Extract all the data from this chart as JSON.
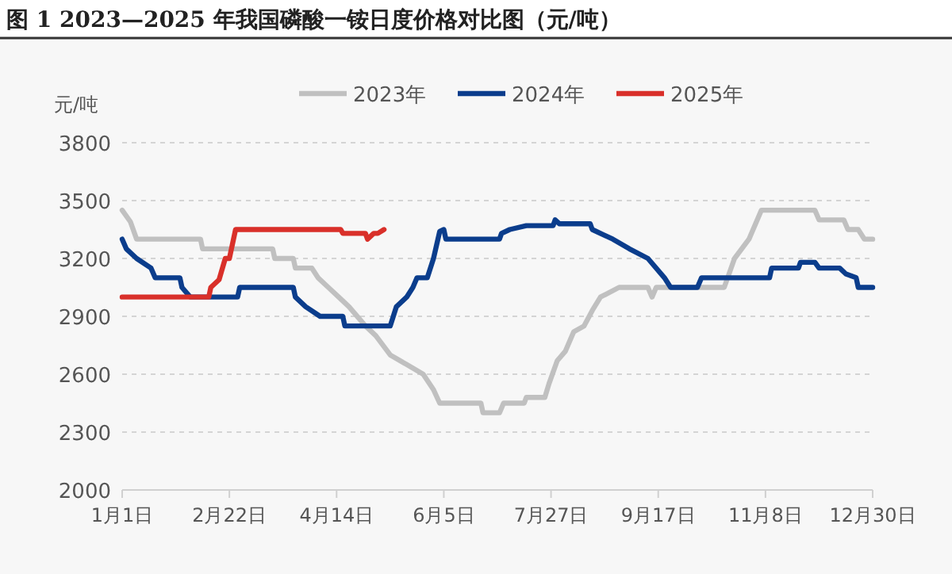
{
  "chart_data": {
    "type": "line",
    "title": "图 1    2023—2025 年我国磷酸一铵日度价格对比图（元/吨）",
    "ylabel": "元/吨",
    "xlim": [
      "--01-01",
      "--12-30"
    ],
    "xticks": [
      {
        "value": "--01-01",
        "label": "1月1日"
      },
      {
        "value": "--02-22",
        "label": "2月22日"
      },
      {
        "value": "--04-14",
        "label": "4月14日"
      },
      {
        "value": "--06-05",
        "label": "6月5日"
      },
      {
        "value": "--07-27",
        "label": "7月27日"
      },
      {
        "value": "--09-17",
        "label": "9月17日"
      },
      {
        "value": "--11-08",
        "label": "11月8日"
      },
      {
        "value": "--12-30",
        "label": "12月30日"
      }
    ],
    "ylim": [
      2000,
      3800
    ],
    "yticks": [
      2000,
      2300,
      2600,
      2900,
      3200,
      3500,
      3800
    ],
    "grid": "y",
    "legend": "top",
    "marker": "none",
    "line_style": "solid",
    "series": [
      {
        "name": "2023年",
        "color": "#c0c0c0",
        "x": [
          "--01-01",
          "--01-05",
          "--01-08",
          "--02-08",
          "--02-09",
          "--03-14",
          "--03-15",
          "--03-24",
          "--03-25",
          "--04-02",
          "--04-05",
          "--04-10",
          "--04-15",
          "--04-20",
          "--04-28",
          "--05-03",
          "--05-10",
          "--05-18",
          "--05-26",
          "--05-31",
          "--06-03",
          "--06-23",
          "--06-24",
          "--07-02",
          "--07-04",
          "--07-14",
          "--07-15",
          "--07-24",
          "--07-26",
          "--07-30",
          "--08-03",
          "--08-07",
          "--08-12",
          "--08-16",
          "--08-20",
          "--08-29",
          "--09-12",
          "--09-14",
          "--09-16",
          "--10-19",
          "--10-24",
          "--10-31",
          "--11-06",
          "--12-02",
          "--12-04",
          "--12-16",
          "--12-18",
          "--12-23",
          "--12-26",
          "--12-30"
        ],
        "values": [
          3450,
          3390,
          3300,
          3300,
          3250,
          3250,
          3200,
          3200,
          3150,
          3150,
          3100,
          3050,
          3000,
          2950,
          2850,
          2800,
          2700,
          2650,
          2600,
          2520,
          2450,
          2450,
          2400,
          2400,
          2450,
          2450,
          2480,
          2480,
          2550,
          2670,
          2720,
          2820,
          2850,
          2930,
          3000,
          3050,
          3050,
          3000,
          3050,
          3050,
          3200,
          3300,
          3450,
          3450,
          3400,
          3400,
          3350,
          3350,
          3300,
          3300
        ]
      },
      {
        "name": "2024年",
        "color": "#0b3d8c",
        "x": [
          "--01-01",
          "--01-03",
          "--01-08",
          "--01-15",
          "--01-17",
          "--01-29",
          "--01-30",
          "--02-03",
          "--02-26",
          "--02-27",
          "--03-24",
          "--03-25",
          "--03-30",
          "--04-06",
          "--04-17",
          "--04-18",
          "--05-10",
          "--05-13",
          "--05-18",
          "--05-21",
          "--05-23",
          "--05-28",
          "--05-31",
          "--06-03",
          "--06-05",
          "--06-06",
          "--07-02",
          "--07-03",
          "--07-07",
          "--07-15",
          "--07-28",
          "--07-29",
          "--07-31",
          "--08-15",
          "--08-16",
          "--08-26",
          "--09-03",
          "--09-12",
          "--09-20",
          "--09-23",
          "--10-06",
          "--10-08",
          "--11-10",
          "--11-11",
          "--11-24",
          "--11-25",
          "--12-02",
          "--12-04",
          "--12-14",
          "--12-17",
          "--12-22",
          "--12-23",
          "--12-30"
        ],
        "values": [
          3300,
          3250,
          3200,
          3150,
          3100,
          3100,
          3050,
          3000,
          3000,
          3050,
          3050,
          3000,
          2950,
          2900,
          2900,
          2850,
          2850,
          2950,
          3000,
          3050,
          3100,
          3100,
          3200,
          3340,
          3350,
          3300,
          3300,
          3330,
          3350,
          3370,
          3370,
          3400,
          3380,
          3380,
          3350,
          3300,
          3250,
          3200,
          3100,
          3050,
          3050,
          3100,
          3100,
          3150,
          3150,
          3180,
          3180,
          3150,
          3150,
          3120,
          3100,
          3050,
          3050
        ]
      },
      {
        "name": "2025年",
        "color": "#d9302a",
        "x": [
          "--01-01",
          "--02-12",
          "--02-13",
          "--02-17",
          "--02-20",
          "--02-22",
          "--02-25",
          "--04-16",
          "--04-17",
          "--04-28",
          "--04-29",
          "--05-02",
          "--05-04",
          "--05-07"
        ],
        "values": [
          3000,
          3000,
          3050,
          3090,
          3200,
          3200,
          3350,
          3350,
          3330,
          3330,
          3300,
          3330,
          3330,
          3350
        ]
      }
    ]
  }
}
